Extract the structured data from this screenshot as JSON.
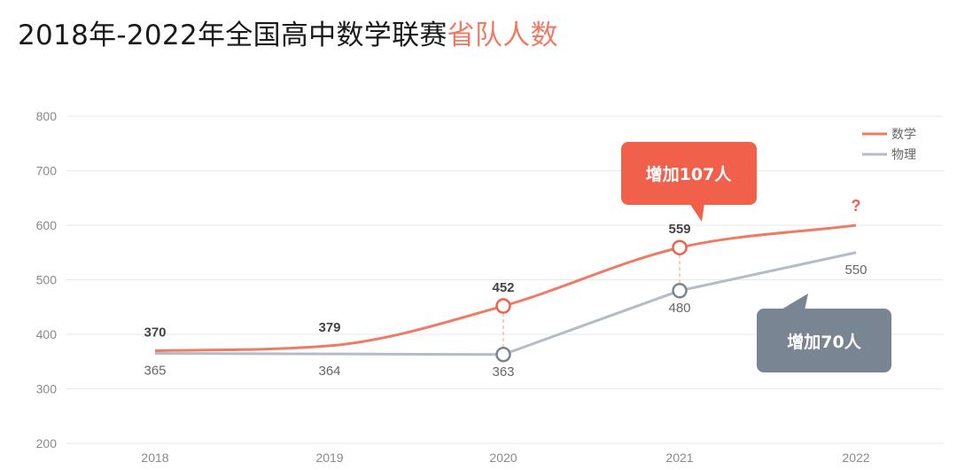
{
  "title": {
    "main": "2018年-2022年全国高中数学联赛",
    "highlight": "省队人数"
  },
  "colors": {
    "math": "#f07a63",
    "physics": "#b4bcc8",
    "callout_math": "#f0604a",
    "callout_physics": "#7a8594",
    "grid": "#e9e9e9"
  },
  "chart_data": {
    "type": "line",
    "title": "2018年-2022年全国高中数学联赛省队人数",
    "categories": [
      "2018",
      "2019",
      "2020",
      "2021",
      "2022"
    ],
    "series": [
      {
        "name": "数学",
        "values": [
          370,
          379,
          452,
          559,
          600
        ],
        "labels": [
          "370",
          "379",
          "452",
          "559",
          "?"
        ]
      },
      {
        "name": "物理",
        "values": [
          365,
          364,
          363,
          480,
          550
        ],
        "labels": [
          "365",
          "364",
          "363",
          "480",
          "550"
        ]
      }
    ],
    "ylim": [
      200,
      800
    ],
    "yticks": [
      "200",
      "300",
      "400",
      "500",
      "600",
      "700",
      "800"
    ],
    "grid": true,
    "legend": "top-right",
    "markers_on": [
      "2020",
      "2021"
    ],
    "annotations": [
      {
        "text": "增加107人",
        "series": "数学"
      },
      {
        "text": "增加70人",
        "series": "物理"
      }
    ]
  }
}
